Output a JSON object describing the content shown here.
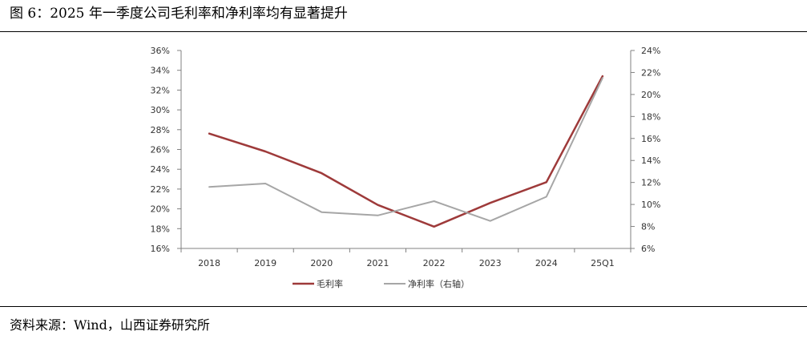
{
  "figure_title": "图 6：2025 年一季度公司毛利率和净利率均有显著提升",
  "source_note": "资料来源：Wind，山西证券研究所",
  "chart_data": {
    "type": "line",
    "title": "",
    "xlabel": "",
    "ylabel": "",
    "categories": [
      "2018",
      "2019",
      "2020",
      "2021",
      "2022",
      "2023",
      "2024",
      "25Q1"
    ],
    "left_axis": {
      "ylim": [
        16,
        36
      ],
      "ticks": [
        16,
        18,
        20,
        22,
        24,
        26,
        28,
        30,
        32,
        34,
        36
      ],
      "tick_labels": [
        "16%",
        "18%",
        "20%",
        "22%",
        "24%",
        "26%",
        "28%",
        "30%",
        "32%",
        "34%",
        "36%"
      ]
    },
    "right_axis": {
      "ylim": [
        6,
        24
      ],
      "ticks": [
        6,
        8,
        10,
        12,
        14,
        16,
        18,
        20,
        22,
        24
      ],
      "tick_labels": [
        "6%",
        "8%",
        "10%",
        "12%",
        "14%",
        "16%",
        "18%",
        "20%",
        "22%",
        "24%"
      ]
    },
    "series": [
      {
        "name": "毛利率",
        "axis": "left",
        "color": "#9e3a3a",
        "values": [
          27.6,
          25.8,
          23.6,
          20.4,
          18.2,
          20.6,
          22.7,
          33.4
        ]
      },
      {
        "name": "净利率（右轴）",
        "axis": "right",
        "color": "#a6a6a6",
        "values": [
          11.6,
          11.9,
          9.3,
          9.0,
          10.3,
          8.5,
          10.7,
          21.5
        ]
      }
    ],
    "legend_position": "bottom-center",
    "grid": false
  }
}
